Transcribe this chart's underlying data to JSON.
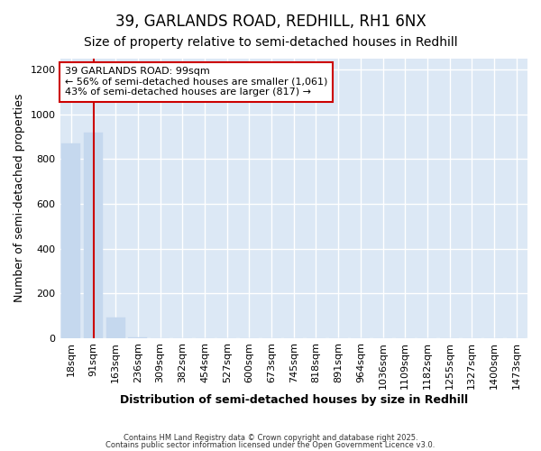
{
  "title": "39, GARLANDS ROAD, REDHILL, RH1 6NX",
  "subtitle": "Size of property relative to semi-detached houses in Redhill",
  "xlabel": "Distribution of semi-detached houses by size in Redhill",
  "ylabel": "Number of semi-detached properties",
  "categories": [
    "18sqm",
    "91sqm",
    "163sqm",
    "236sqm",
    "309sqm",
    "382sqm",
    "454sqm",
    "527sqm",
    "600sqm",
    "673sqm",
    "745sqm",
    "818sqm",
    "891sqm",
    "964sqm",
    "1036sqm",
    "1109sqm",
    "1182sqm",
    "1255sqm",
    "1327sqm",
    "1400sqm",
    "1473sqm"
  ],
  "values": [
    870,
    920,
    90,
    4,
    0,
    0,
    0,
    0,
    0,
    0,
    0,
    0,
    0,
    0,
    0,
    0,
    0,
    0,
    0,
    0,
    0
  ],
  "bar_color": "#c5d8ee",
  "bar_edge_color": "#c5d8ee",
  "property_index": 1,
  "property_label": "39 GARLANDS ROAD: 99sqm",
  "line1": "← 56% of semi-detached houses are smaller (1,061)",
  "line2": "43% of semi-detached houses are larger (817) →",
  "annotation_box_color": "#cc0000",
  "vline_color": "#cc0000",
  "plot_bg_color": "#dce8f5",
  "fig_bg_color": "#ffffff",
  "grid_color": "#ffffff",
  "ylim": [
    0,
    1250
  ],
  "yticks": [
    0,
    200,
    400,
    600,
    800,
    1000,
    1200
  ],
  "footer_line1": "Contains HM Land Registry data © Crown copyright and database right 2025.",
  "footer_line2": "Contains public sector information licensed under the Open Government Licence v3.0.",
  "title_fontsize": 12,
  "subtitle_fontsize": 10,
  "tick_fontsize": 8,
  "ylabel_fontsize": 9,
  "xlabel_fontsize": 9,
  "annotation_fontsize": 8
}
